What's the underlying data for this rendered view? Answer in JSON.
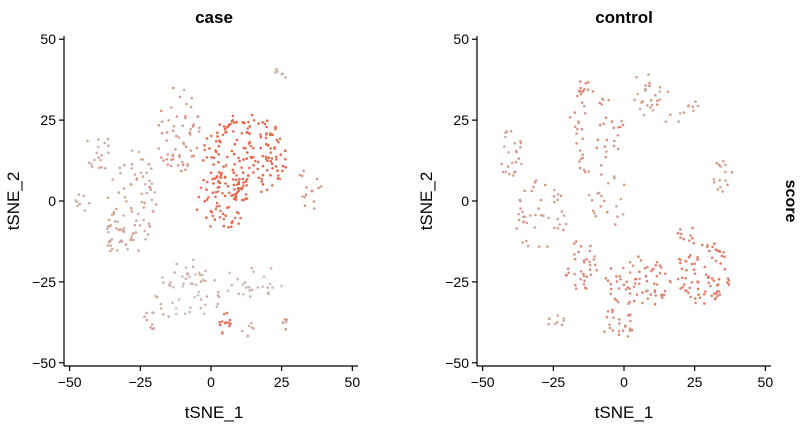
{
  "legend": {
    "title": "score"
  },
  "chart_data": [
    {
      "type": "scatter",
      "title": "case",
      "xlabel": "tSNE_1",
      "ylabel": "tSNE_2",
      "xlim": [
        -52,
        52
      ],
      "ylim": [
        -51,
        51
      ],
      "xticks": [
        -50,
        -25,
        0,
        25,
        50
      ],
      "yticks": [
        -50,
        -25,
        0,
        25,
        50
      ],
      "xtick_labels": [
        "−50",
        "−25",
        "0",
        "25",
        "50"
      ],
      "ytick_labels": [
        "−50",
        "−25",
        "0",
        "25",
        "50"
      ],
      "grid": false,
      "colors": {
        "low": "#cdbdb8",
        "high": "#ea5d40"
      },
      "point_regions": [
        {
          "x": 12,
          "y": 14,
          "rx": 15,
          "ry": 13,
          "n": 170,
          "score": 0.9
        },
        {
          "x": 4,
          "y": 0,
          "rx": 10,
          "ry": 9,
          "n": 70,
          "score": 0.85
        },
        {
          "x": 5,
          "y": -38,
          "rx": 2,
          "ry": 4,
          "n": 14,
          "score": 0.8
        },
        {
          "x": -12,
          "y": 22,
          "rx": 8,
          "ry": 14,
          "n": 60,
          "score": 0.35
        },
        {
          "x": -28,
          "y": 0,
          "rx": 9,
          "ry": 16,
          "n": 70,
          "score": 0.25
        },
        {
          "x": -33,
          "y": -10,
          "rx": 7,
          "ry": 6,
          "n": 25,
          "score": 0.22
        },
        {
          "x": -40,
          "y": 15,
          "rx": 5,
          "ry": 6,
          "n": 18,
          "score": 0.15
        },
        {
          "x": -45,
          "y": 0,
          "rx": 3,
          "ry": 3,
          "n": 8,
          "score": 0.15
        },
        {
          "x": -8,
          "y": -28,
          "rx": 12,
          "ry": 10,
          "n": 55,
          "score": 0.1
        },
        {
          "x": 15,
          "y": -25,
          "rx": 12,
          "ry": 5,
          "n": 25,
          "score": 0.1
        },
        {
          "x": 35,
          "y": 5,
          "rx": 4,
          "ry": 8,
          "n": 15,
          "score": 0.35
        },
        {
          "x": -20,
          "y": -37,
          "rx": 5,
          "ry": 3,
          "n": 10,
          "score": 0.2
        },
        {
          "x": 14,
          "y": -40,
          "rx": 3,
          "ry": 3,
          "n": 7,
          "score": 0.2
        },
        {
          "x": 25,
          "y": 40,
          "rx": 3,
          "ry": 2,
          "n": 6,
          "score": 0.2
        },
        {
          "x": 27,
          "y": -38,
          "rx": 2,
          "ry": 2,
          "n": 5,
          "score": 0.3
        }
      ]
    },
    {
      "type": "scatter",
      "title": "control",
      "xlabel": "tSNE_1",
      "ylabel": "tSNE_2",
      "xlim": [
        -52,
        52
      ],
      "ylim": [
        -51,
        51
      ],
      "xticks": [
        -50,
        -25,
        0,
        25,
        50
      ],
      "yticks": [
        -50,
        -25,
        0,
        25,
        50
      ],
      "xtick_labels": [
        "−50",
        "−25",
        "0",
        "25",
        "50"
      ],
      "ytick_labels": [
        "−50",
        "−25",
        "0",
        "25",
        "50"
      ],
      "grid": false,
      "colors": {
        "low": "#cdbdb8",
        "high": "#ea5d40"
      },
      "point_regions": [
        {
          "x": 28,
          "y": -22,
          "rx": 10,
          "ry": 10,
          "n": 80,
          "score": 0.65
        },
        {
          "x": 5,
          "y": -25,
          "rx": 12,
          "ry": 8,
          "n": 70,
          "score": 0.55
        },
        {
          "x": -15,
          "y": -20,
          "rx": 6,
          "ry": 8,
          "n": 35,
          "score": 0.5
        },
        {
          "x": -2,
          "y": -38,
          "rx": 6,
          "ry": 5,
          "n": 25,
          "score": 0.45
        },
        {
          "x": -10,
          "y": 20,
          "rx": 10,
          "ry": 15,
          "n": 50,
          "score": 0.45
        },
        {
          "x": -30,
          "y": -5,
          "rx": 10,
          "ry": 12,
          "n": 45,
          "score": 0.35
        },
        {
          "x": -40,
          "y": 15,
          "rx": 5,
          "ry": 8,
          "n": 25,
          "score": 0.3
        },
        {
          "x": 15,
          "y": 30,
          "rx": 12,
          "ry": 6,
          "n": 25,
          "score": 0.3
        },
        {
          "x": 35,
          "y": 8,
          "rx": 4,
          "ry": 6,
          "n": 15,
          "score": 0.35
        },
        {
          "x": 8,
          "y": 35,
          "rx": 5,
          "ry": 5,
          "n": 12,
          "score": 0.35
        },
        {
          "x": -15,
          "y": 35,
          "rx": 3,
          "ry": 3,
          "n": 12,
          "score": 0.55
        },
        {
          "x": -25,
          "y": -37,
          "rx": 5,
          "ry": 2,
          "n": 8,
          "score": 0.3
        },
        {
          "x": 22,
          "y": -10,
          "rx": 3,
          "ry": 3,
          "n": 10,
          "score": 0.6
        },
        {
          "x": -5,
          "y": 0,
          "rx": 8,
          "ry": 8,
          "n": 20,
          "score": 0.35
        }
      ]
    }
  ]
}
